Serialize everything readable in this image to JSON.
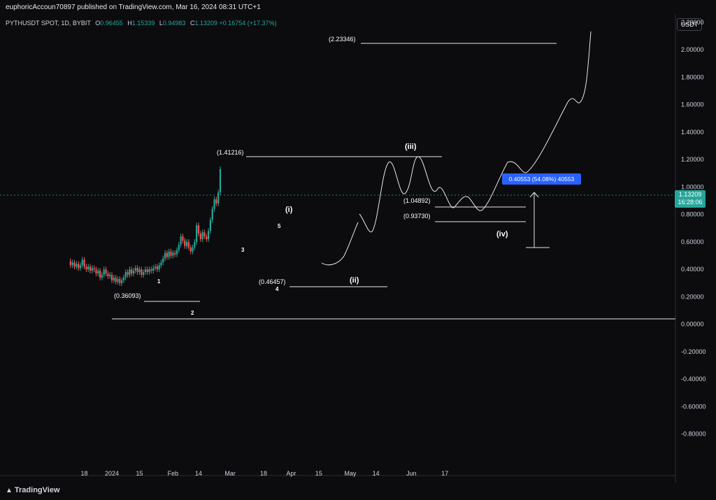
{
  "header": {
    "published": "euphoricAccoun70897 published on TradingView.com, Mar 16, 2024 08:31 UTC+1",
    "symbol": "PYTHUSDT SPOT, 1D, BYBIT",
    "o_label": "O",
    "o_value": "0.96455",
    "h_label": "H",
    "h_value": "1.15339",
    "l_label": "L",
    "l_value": "0.94983",
    "c_label": "C",
    "c_value": "1.13209",
    "change": "+0.16754 (+17.37%)"
  },
  "currency_button": "USDT",
  "price_label": {
    "price": "1.13209",
    "countdown": "16:28:06"
  },
  "measure_label": "0.40553 (54.08%) 40553",
  "footer": {
    "logo": "TradingView"
  },
  "colors": {
    "up": "#26a69a",
    "down": "#ef5350",
    "background": "#0c0c0f",
    "measure": "#2962ff"
  },
  "chart_data": {
    "type": "candlestick",
    "y_ticks": [
      "2.20000",
      "2.00000",
      "1.80000",
      "1.60000",
      "1.40000",
      "1.20000",
      "1.00000",
      "0.80000",
      "0.60000",
      "0.40000",
      "0.20000",
      "0.00000",
      "-0.20000",
      "-0.40000",
      "-0.60000",
      "-0.80000"
    ],
    "ylim": [
      -0.85,
      2.35
    ],
    "x_ticks": [
      "18",
      "2024",
      "15",
      "Feb",
      "14",
      "Mar",
      "18",
      "Apr",
      "15",
      "May",
      "14",
      "Jun",
      "17"
    ],
    "x_tick_values": [
      -14,
      0,
      14,
      31,
      44,
      60,
      77,
      91,
      105,
      121,
      134,
      152,
      169
    ],
    "xlim": [
      -21,
      175
    ],
    "candles": [
      [
        -21,
        0.46,
        0.43
      ],
      [
        -20,
        0.43,
        0.45
      ],
      [
        -19,
        0.45,
        0.42
      ],
      [
        -18,
        0.42,
        0.44
      ],
      [
        -17,
        0.44,
        0.41
      ],
      [
        -16,
        0.41,
        0.43
      ],
      [
        -15,
        0.43,
        0.47
      ],
      [
        -14,
        0.47,
        0.42
      ],
      [
        -13,
        0.42,
        0.4
      ],
      [
        -12,
        0.4,
        0.42
      ],
      [
        -11,
        0.42,
        0.39
      ],
      [
        -10,
        0.39,
        0.41
      ],
      [
        -9,
        0.41,
        0.4
      ],
      [
        -8,
        0.4,
        0.37
      ],
      [
        -7,
        0.37,
        0.39
      ],
      [
        -6,
        0.39,
        0.34
      ],
      [
        -5,
        0.34,
        0.36
      ],
      [
        -4,
        0.36,
        0.4
      ],
      [
        -3,
        0.4,
        0.37
      ],
      [
        -2,
        0.37,
        0.35
      ],
      [
        -1,
        0.35,
        0.36
      ],
      [
        0,
        0.36,
        0.32
      ],
      [
        1,
        0.32,
        0.34
      ],
      [
        2,
        0.34,
        0.31
      ],
      [
        3,
        0.31,
        0.33
      ],
      [
        4,
        0.33,
        0.3
      ],
      [
        5,
        0.3,
        0.32
      ],
      [
        6,
        0.32,
        0.34
      ],
      [
        7,
        0.34,
        0.38
      ],
      [
        8,
        0.38,
        0.36
      ],
      [
        9,
        0.36,
        0.4
      ],
      [
        10,
        0.4,
        0.37
      ],
      [
        11,
        0.37,
        0.39
      ],
      [
        12,
        0.39,
        0.41
      ],
      [
        13,
        0.41,
        0.38
      ],
      [
        14,
        0.38,
        0.4
      ],
      [
        15,
        0.4,
        0.36
      ],
      [
        16,
        0.36,
        0.38
      ],
      [
        17,
        0.38,
        0.4
      ],
      [
        18,
        0.4,
        0.38
      ],
      [
        19,
        0.38,
        0.4
      ],
      [
        20,
        0.4,
        0.39
      ],
      [
        21,
        0.39,
        0.41
      ],
      [
        22,
        0.41,
        0.42
      ],
      [
        23,
        0.42,
        0.4
      ],
      [
        24,
        0.4,
        0.43
      ],
      [
        25,
        0.43,
        0.45
      ],
      [
        26,
        0.45,
        0.48
      ],
      [
        27,
        0.48,
        0.52
      ],
      [
        28,
        0.52,
        0.49
      ],
      [
        29,
        0.49,
        0.53
      ],
      [
        30,
        0.53,
        0.5
      ],
      [
        31,
        0.5,
        0.52
      ],
      [
        32,
        0.52,
        0.51
      ],
      [
        33,
        0.51,
        0.54
      ],
      [
        34,
        0.54,
        0.58
      ],
      [
        35,
        0.58,
        0.64
      ],
      [
        36,
        0.64,
        0.61
      ],
      [
        37,
        0.61,
        0.57
      ],
      [
        38,
        0.57,
        0.6
      ],
      [
        39,
        0.6,
        0.56
      ],
      [
        40,
        0.56,
        0.53
      ],
      [
        41,
        0.53,
        0.56
      ],
      [
        42,
        0.56,
        0.6
      ],
      [
        43,
        0.6,
        0.72
      ],
      [
        44,
        0.72,
        0.66
      ],
      [
        45,
        0.66,
        0.62
      ],
      [
        46,
        0.62,
        0.67
      ],
      [
        47,
        0.67,
        0.64
      ],
      [
        48,
        0.64,
        0.62
      ],
      [
        49,
        0.62,
        0.68
      ],
      [
        50,
        0.68,
        0.76
      ],
      [
        51,
        0.76,
        0.84
      ],
      [
        52,
        0.84,
        0.91
      ],
      [
        53,
        0.91,
        0.88
      ],
      [
        54,
        0.88,
        0.96
      ],
      [
        55,
        0.96,
        1.13
      ]
    ],
    "annotations": {
      "levels": [
        "(2.23346)",
        "(1.41216)",
        "(1.04892)",
        "(0.93730)",
        "(0.46457)",
        "(0.36093)"
      ],
      "waves": [
        "(i)",
        "(ii)",
        "(iii)",
        "(iv)"
      ],
      "subwaves": [
        "1",
        "2",
        "3",
        "4",
        "5"
      ]
    }
  }
}
